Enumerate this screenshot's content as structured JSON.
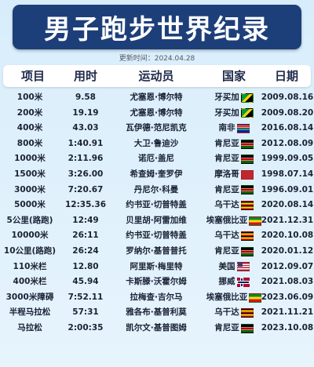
{
  "title": "男子跑步世界纪录",
  "update": {
    "label": "更新时间：",
    "date": "2024.04.28"
  },
  "headers": [
    "项目",
    "用时",
    "运动员",
    "国家",
    "日期"
  ],
  "rows": [
    {
      "event": "100米",
      "time": "9.58",
      "athlete": "尤塞恩·博尔特",
      "country": "牙买加",
      "flag": "jamaica-flag",
      "date": "2009.08.16"
    },
    {
      "event": "200米",
      "time": "19.19",
      "athlete": "尤塞恩·博尔特",
      "country": "牙买加",
      "flag": "jamaica-flag",
      "date": "2009.08.20"
    },
    {
      "event": "400米",
      "time": "43.03",
      "athlete": "瓦伊德·范尼凯克",
      "country": "南非",
      "flag": "south-africa-flag",
      "date": "2016.08.14"
    },
    {
      "event": "800米",
      "time": "1:40.91",
      "athlete": "大卫·鲁迪沙",
      "country": "肯尼亚",
      "flag": "kenya-flag",
      "date": "2012.08.09"
    },
    {
      "event": "1000米",
      "time": "2:11.96",
      "athlete": "诺厄·盖尼",
      "country": "肯尼亚",
      "flag": "kenya-flag",
      "date": "1999.09.05"
    },
    {
      "event": "1500米",
      "time": "3:26.00",
      "athlete": "希查姆·奎罗伊",
      "country": "摩洛哥",
      "flag": "morocco-flag",
      "date": "1998.07.14"
    },
    {
      "event": "3000米",
      "time": "7:20.67",
      "athlete": "丹尼尔·科曼",
      "country": "肯尼亚",
      "flag": "kenya-flag",
      "date": "1996.09.01"
    },
    {
      "event": "5000米",
      "time": "12:35.36",
      "athlete": "约书亚·切普特盖",
      "country": "乌干达",
      "flag": "uganda-flag",
      "date": "2020.08.14"
    },
    {
      "event": "5公里(路跑)",
      "time": "12:49",
      "athlete": "贝里胡·阿雷加维",
      "country": "埃塞俄比亚",
      "flag": "ethiopia-flag",
      "date": "2021.12.31"
    },
    {
      "event": "10000米",
      "time": "26:11",
      "athlete": "约书亚·切普特盖",
      "country": "乌干达",
      "flag": "uganda-flag",
      "date": "2020.10.08"
    },
    {
      "event": "10公里(路跑)",
      "time": "26:24",
      "athlete": "罗纳尔·基普普托",
      "country": "肯尼亚",
      "flag": "kenya-flag",
      "date": "2020.01.12"
    },
    {
      "event": "110米栏",
      "time": "12.80",
      "athlete": "阿里斯·梅里特",
      "country": "美国",
      "flag": "usa-flag",
      "date": "2012.09.07"
    },
    {
      "event": "400米栏",
      "time": "45.94",
      "athlete": "卡斯滕·沃霍尔姆",
      "country": "挪威",
      "flag": "norway-flag",
      "date": "2021.08.03"
    },
    {
      "event": "3000米障碍",
      "time": "7:52.11",
      "athlete": "拉梅查·吉尔马",
      "country": "埃塞俄比亚",
      "flag": "ethiopia-flag",
      "date": "2023.06.09"
    },
    {
      "event": "半程马拉松",
      "time": "57:31",
      "athlete": "雅各布·基普利莫",
      "country": "乌干达",
      "flag": "uganda-flag",
      "date": "2021.11.21"
    },
    {
      "event": "马拉松",
      "time": "2:00:35",
      "athlete": "凯尔文·基普图姆",
      "country": "肯尼亚",
      "flag": "kenya-flag",
      "date": "2023.10.08"
    }
  ]
}
